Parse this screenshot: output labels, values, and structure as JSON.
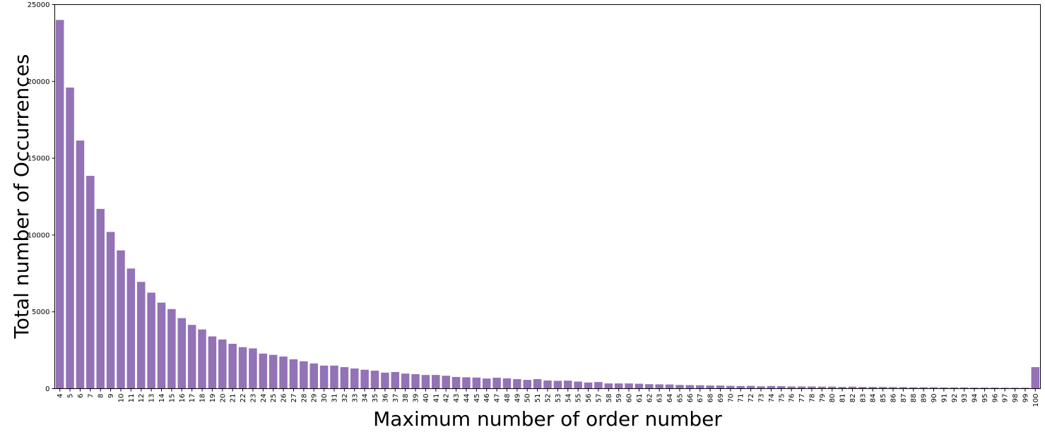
{
  "chart_data": {
    "type": "bar",
    "title": "",
    "xlabel": "Maximum number of order number",
    "ylabel": "Total number of Occurrences",
    "ylim": [
      0,
      25000
    ],
    "yticks": [
      0,
      5000,
      10000,
      15000,
      20000,
      25000
    ],
    "ytick_labels": [
      "0",
      "5000",
      "10000",
      "15000",
      "20000",
      "25000"
    ],
    "grid": false,
    "bar_color": "#9372b6",
    "categories": [
      "4",
      "5",
      "6",
      "7",
      "8",
      "9",
      "10",
      "11",
      "12",
      "13",
      "14",
      "15",
      "16",
      "17",
      "18",
      "19",
      "20",
      "21",
      "22",
      "23",
      "24",
      "25",
      "26",
      "27",
      "28",
      "29",
      "30",
      "31",
      "32",
      "33",
      "34",
      "35",
      "36",
      "37",
      "38",
      "39",
      "40",
      "41",
      "42",
      "43",
      "44",
      "45",
      "46",
      "47",
      "48",
      "49",
      "50",
      "51",
      "52",
      "53",
      "54",
      "55",
      "56",
      "57",
      "58",
      "59",
      "60",
      "61",
      "62",
      "63",
      "64",
      "65",
      "66",
      "67",
      "68",
      "69",
      "70",
      "71",
      "72",
      "73",
      "74",
      "75",
      "76",
      "77",
      "78",
      "79",
      "80",
      "81",
      "82",
      "83",
      "84",
      "85",
      "86",
      "87",
      "88",
      "89",
      "90",
      "91",
      "92",
      "93",
      "94",
      "95",
      "96",
      "97",
      "98",
      "99",
      "100"
    ],
    "values": [
      24000,
      19600,
      16150,
      13850,
      11700,
      10200,
      9000,
      7820,
      6950,
      6250,
      5600,
      5180,
      4590,
      4150,
      3850,
      3400,
      3200,
      2920,
      2700,
      2620,
      2280,
      2200,
      2090,
      1910,
      1780,
      1640,
      1500,
      1500,
      1400,
      1310,
      1230,
      1170,
      1040,
      1080,
      980,
      940,
      890,
      890,
      840,
      760,
      740,
      720,
      660,
      710,
      670,
      620,
      570,
      620,
      530,
      510,
      520,
      460,
      400,
      430,
      340,
      340,
      340,
      320,
      290,
      280,
      270,
      240,
      230,
      220,
      200,
      200,
      180,
      170,
      180,
      150,
      170,
      160,
      140,
      140,
      140,
      130,
      130,
      110,
      130,
      110,
      110,
      110,
      100,
      100,
      90,
      90,
      90,
      80,
      80,
      80,
      70,
      70,
      70,
      60,
      60,
      60,
      1400
    ]
  }
}
